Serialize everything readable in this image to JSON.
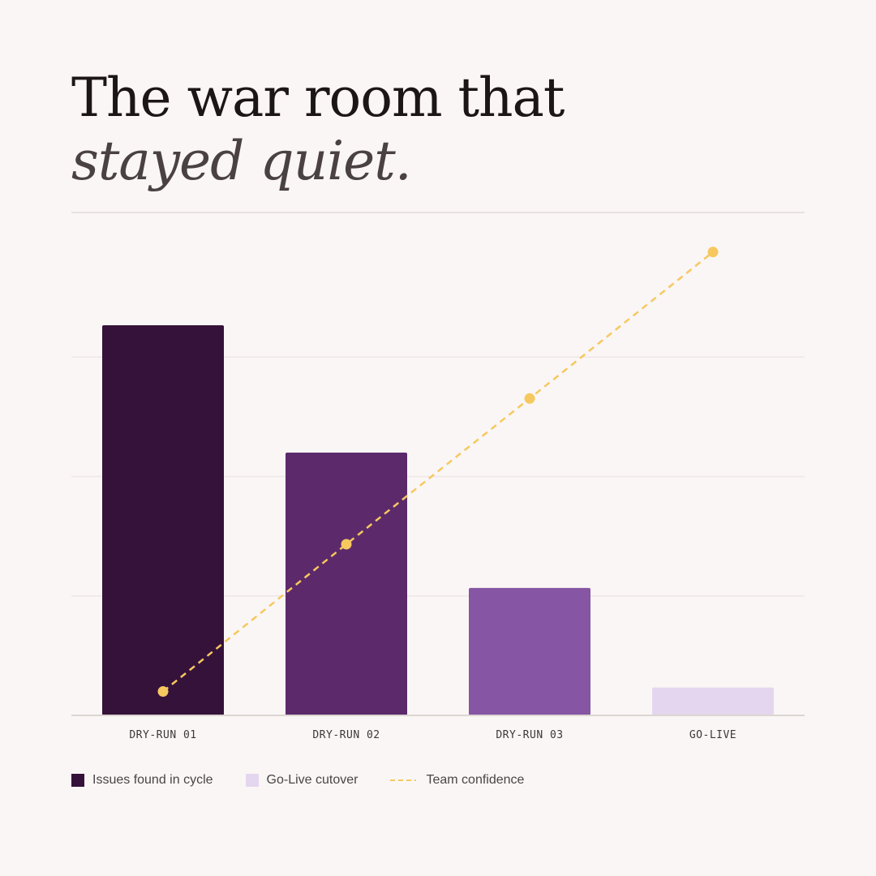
{
  "title": {
    "line1": "The war room that",
    "line2": "stayed quiet."
  },
  "chart_data": {
    "type": "bar",
    "categories": [
      "DRY-RUN 01",
      "DRY-RUN 02",
      "DRY-RUN 03",
      "GO-LIVE"
    ],
    "ylim": [
      0,
      60
    ],
    "grid": true,
    "series": [
      {
        "name": "Issues found in cycle",
        "type": "bar",
        "values": [
          49,
          33,
          16,
          3.5
        ],
        "colors": [
          "#35123a",
          "#5c2a6b",
          "#8655a3",
          "#e5d6ef"
        ]
      },
      {
        "name": "Team confidence",
        "type": "line",
        "style": "dashed",
        "color": "#f6c85f",
        "values": [
          3,
          21.5,
          39.8,
          58.2
        ]
      }
    ],
    "legend": {
      "placement": "bottom-left",
      "entries": [
        {
          "label": "Issues found in cycle",
          "color": "#35123a",
          "kind": "box"
        },
        {
          "label": "Go-Live cutover",
          "color": "#e5d6ef",
          "kind": "box"
        },
        {
          "label": "Team confidence",
          "color": "#f6c85f",
          "kind": "dash"
        }
      ]
    }
  }
}
